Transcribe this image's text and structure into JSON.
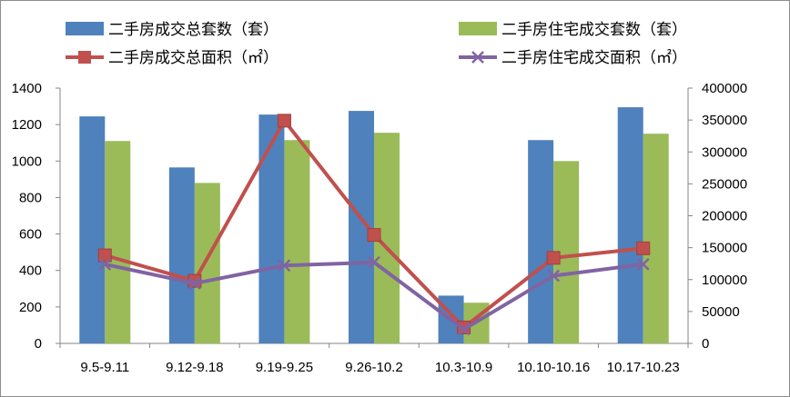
{
  "chart_data": {
    "type": "bar",
    "categories": [
      "9.5-9.11",
      "9.12-9.18",
      "9.19-9.25",
      "9.26-10.2",
      "10.3-10.9",
      "10.10-10.16",
      "10.17-10.23"
    ],
    "series": [
      {
        "name": "二手房成交总套数（套）",
        "kind": "bar",
        "axis": "left",
        "color": "#4f81bd",
        "values": [
          1245,
          965,
          1255,
          1275,
          262,
          1115,
          1295
        ]
      },
      {
        "name": "二手房住宅成交套数（套）",
        "kind": "bar",
        "axis": "left",
        "color": "#9bbb59",
        "values": [
          1110,
          880,
          1115,
          1155,
          223,
          1000,
          1150
        ]
      },
      {
        "name": "二手房成交总面积（㎡）",
        "kind": "line",
        "marker": "square",
        "axis": "right",
        "color": "#c0504d",
        "values": [
          138000,
          98000,
          349000,
          170000,
          25000,
          134000,
          149000
        ]
      },
      {
        "name": "二手房住宅成交面积（㎡）",
        "kind": "line",
        "marker": "x",
        "axis": "right",
        "color": "#8064a2",
        "values": [
          124000,
          94000,
          122000,
          127000,
          22000,
          106000,
          124000
        ]
      }
    ],
    "y_left": {
      "min": 0,
      "max": 1400,
      "step": 200,
      "ticks": [
        "0",
        "200",
        "400",
        "600",
        "800",
        "1000",
        "1200",
        "1400"
      ]
    },
    "y_right": {
      "min": 0,
      "max": 400000,
      "step": 50000,
      "ticks": [
        "0",
        "50000",
        "100000",
        "150000",
        "200000",
        "250000",
        "300000",
        "350000",
        "400000"
      ]
    },
    "legend_position": "top",
    "grid": false
  }
}
